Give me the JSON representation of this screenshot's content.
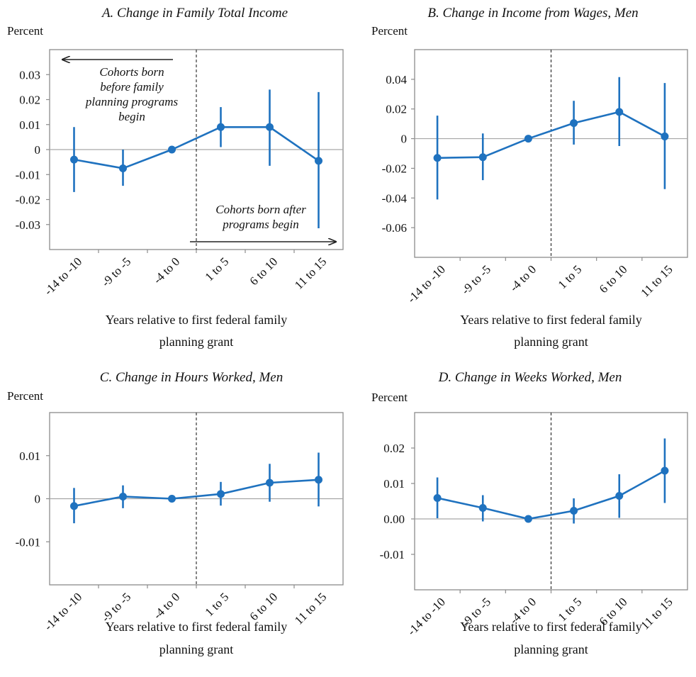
{
  "colors": {
    "series": "#1f72bf",
    "axis": "#8c8c8c",
    "zero": "#a6a6a6",
    "guide": "#222222",
    "text": "#111111"
  },
  "chart_data": [
    {
      "id": "A",
      "type": "line",
      "title": "A. Change in Family Total Income",
      "ylabel": "Percent",
      "xlabel_lines": [
        "Years relative to first federal family",
        "planning grant"
      ],
      "categories": [
        "-14 to -10",
        "-9 to -5",
        "-4 to 0",
        "1 to 5",
        "6 to 10",
        "11 to 15"
      ],
      "ylim": [
        -0.04,
        0.04
      ],
      "yticks": [
        0.03,
        0.02,
        0.01,
        0,
        -0.01,
        -0.02,
        -0.03
      ],
      "ytick_labels": [
        "0.03",
        "0.02",
        "0.01",
        "0",
        "-0.01",
        "-0.02",
        "-0.03"
      ],
      "values": [
        -0.004,
        -0.0075,
        0.0,
        0.009,
        0.009,
        -0.0045
      ],
      "ci_low": [
        -0.017,
        -0.0145,
        0.0,
        0.001,
        -0.0065,
        -0.0315
      ],
      "ci_high": [
        0.009,
        0.0,
        0.0,
        0.017,
        0.024,
        0.023
      ],
      "annotations": [
        {
          "lines": [
            "Cohorts born",
            "before family",
            "planning programs",
            "begin"
          ]
        },
        {
          "lines": [
            "Cohorts born after",
            "programs begin"
          ]
        }
      ]
    },
    {
      "id": "B",
      "type": "line",
      "title": "B. Change in Income from Wages, Men",
      "ylabel": "Percent",
      "xlabel_lines": [
        "Years relative to first federal family",
        "planning grant"
      ],
      "categories": [
        "-14 to -10",
        "-9 to -5",
        "-4 to 0",
        "1 to 5",
        "6 to 10",
        "11 to 15"
      ],
      "ylim": [
        -0.08,
        0.06
      ],
      "yticks": [
        0.04,
        0.02,
        0,
        -0.02,
        -0.04,
        -0.06
      ],
      "ytick_labels": [
        "0.04",
        "0.02",
        "0",
        "-0.02",
        "-0.04",
        "-0.06"
      ],
      "values": [
        -0.013,
        -0.0125,
        0.0,
        0.0105,
        0.018,
        0.0015
      ],
      "ci_low": [
        -0.041,
        -0.028,
        0.0,
        -0.004,
        -0.005,
        -0.034
      ],
      "ci_high": [
        0.0155,
        0.0035,
        0.0,
        0.0255,
        0.0415,
        0.0375
      ]
    },
    {
      "id": "C",
      "type": "line",
      "title": "C. Change in Hours Worked, Men",
      "ylabel": "Percent",
      "xlabel_lines": [
        "Years relative to first federal family",
        "planning grant"
      ],
      "categories": [
        "-14 to -10",
        "-9 to -5",
        "-4 to 0",
        "1 to 5",
        "6 to 10",
        "11 to 15"
      ],
      "ylim": [
        -0.02,
        0.02
      ],
      "yticks": [
        0.01,
        0,
        -0.01
      ],
      "ytick_labels": [
        "0.01",
        "0",
        "-0.01"
      ],
      "values": [
        -0.0017,
        0.0005,
        0.0,
        0.0011,
        0.0037,
        0.0044
      ],
      "ci_low": [
        -0.0057,
        -0.0022,
        0.0,
        -0.0016,
        -0.0007,
        -0.0018
      ],
      "ci_high": [
        0.0025,
        0.0031,
        0.0,
        0.0039,
        0.0081,
        0.0107
      ]
    },
    {
      "id": "D",
      "type": "line",
      "title": "D. Change in Weeks Worked, Men",
      "ylabel": "Percent",
      "xlabel_lines": [
        "Years relative to first federal family",
        "planning grant"
      ],
      "categories": [
        "-14 to -10",
        "-9 to -5",
        "-4 to 0",
        "1 to 5",
        "6 to 10",
        "11 to 15"
      ],
      "ylim": [
        -0.02,
        0.03
      ],
      "yticks": [
        0.02,
        0.01,
        0,
        -0.01
      ],
      "ytick_labels": [
        "0.02",
        "0.01",
        "0.00",
        "-0.01"
      ],
      "values": [
        0.0059,
        0.0031,
        0.0,
        0.0023,
        0.0065,
        0.0136
      ],
      "ci_low": [
        0.0002,
        -0.0007,
        0.0,
        -0.0013,
        0.0003,
        0.0045
      ],
      "ci_high": [
        0.0117,
        0.0067,
        0.0,
        0.0058,
        0.0126,
        0.0227
      ]
    }
  ]
}
